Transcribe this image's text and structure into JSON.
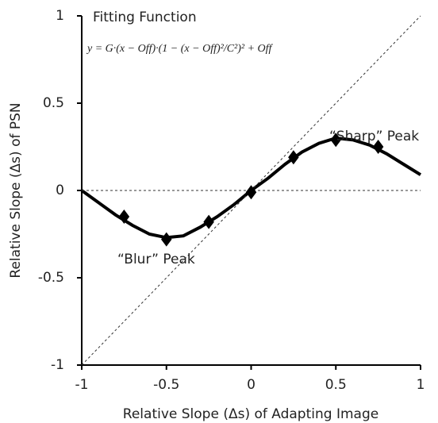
{
  "chart_data": {
    "type": "scatter",
    "xlabel": "Relative Slope (Δs) of Adapting Image",
    "ylabel": "Relative Slope (Δs) of PSN",
    "xlim": [
      -1,
      1
    ],
    "ylim": [
      -1,
      1
    ],
    "xticks": [
      -1,
      -0.5,
      0,
      0.5,
      1
    ],
    "yticks": [
      -1,
      -0.5,
      0,
      0.5,
      1
    ],
    "annotations": [
      "Fitting Function",
      "y = G·(x − Off)·(1 − (x − Off)²/C²)² + Off",
      "“Sharp” Peak",
      "“Blur” Peak"
    ],
    "series": [
      {
        "type": "scatter",
        "marker": "diamond",
        "color": "#000000",
        "x": [
          -0.75,
          -0.5,
          -0.25,
          0,
          0.25,
          0.5,
          0.75
        ],
        "values": [
          -0.15,
          -0.28,
          -0.18,
          -0.01,
          0.19,
          0.29,
          0.25
        ]
      },
      {
        "type": "line",
        "color": "#000000",
        "dashed": false,
        "x": [
          -1,
          -0.9,
          -0.8,
          -0.7,
          -0.6,
          -0.5,
          -0.4,
          -0.3,
          -0.2,
          -0.1,
          0,
          0.1,
          0.2,
          0.3,
          0.4,
          0.5,
          0.6,
          0.7,
          0.8,
          0.9,
          1
        ],
        "values": [
          0,
          -0.07,
          -0.14,
          -0.2,
          -0.25,
          -0.27,
          -0.26,
          -0.21,
          -0.15,
          -0.08,
          0,
          0.07,
          0.15,
          0.22,
          0.27,
          0.3,
          0.29,
          0.26,
          0.21,
          0.15,
          0.09
        ]
      },
      {
        "type": "line",
        "color": "#333333",
        "dashed": true,
        "x": [
          -1,
          1
        ],
        "values": [
          -1,
          1
        ]
      },
      {
        "type": "line",
        "color": "#333333",
        "dashed": true,
        "x": [
          -1,
          1
        ],
        "values": [
          0,
          0
        ]
      }
    ]
  }
}
